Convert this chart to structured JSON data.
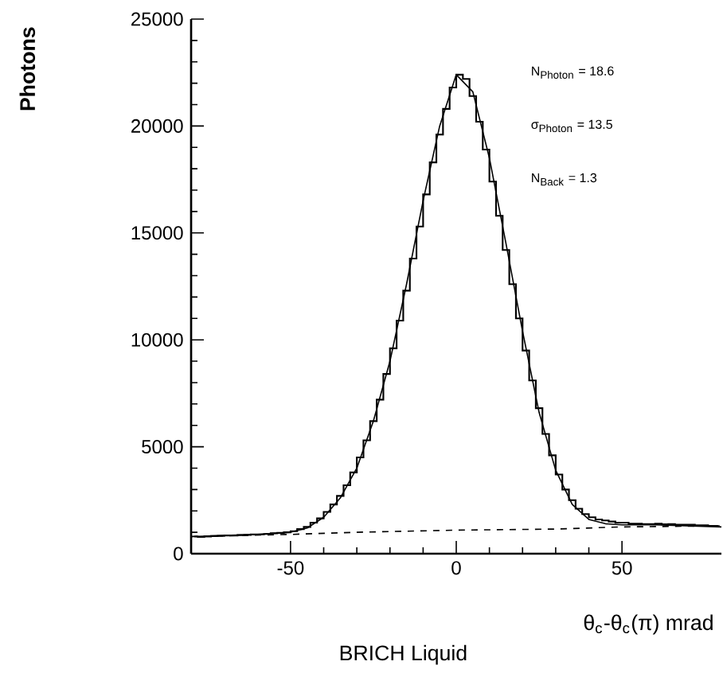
{
  "chart_data": {
    "type": "line",
    "xlabel": "θ$_{c}$-θ$_{c}$(π) mrad",
    "ylabel": "Photons",
    "annotations": [
      "N$_{Photon}$ = 18.6",
      "σ$_{Photon}$ = 13.5",
      "N$_{Back}$ = 1.3",
      "BRICH Liquid"
    ],
    "xlim": [
      -80,
      80
    ],
    "ylim": [
      0,
      25000
    ],
    "xticks": [
      -50,
      0,
      50
    ],
    "yticks": [
      0,
      5000,
      10000,
      15000,
      20000,
      25000
    ],
    "grid": false,
    "series": [
      {
        "type": "step",
        "color": "#000000",
        "x": [
          -79,
          -77,
          -75,
          -73,
          -71,
          -69,
          -67,
          -65,
          -63,
          -61,
          -59,
          -57,
          -55,
          -53,
          -51,
          -49,
          -47,
          -45,
          -43,
          -41,
          -39,
          -37,
          -35,
          -33,
          -31,
          -29,
          -27,
          -25,
          -23,
          -21,
          -19,
          -17,
          -15,
          -13,
          -11,
          -9,
          -7,
          -5,
          -3,
          -1,
          1,
          3,
          5,
          7,
          9,
          11,
          13,
          15,
          17,
          19,
          21,
          23,
          25,
          27,
          29,
          31,
          33,
          35,
          37,
          39,
          41,
          43,
          45,
          47,
          49,
          51,
          53,
          55,
          57,
          59,
          61,
          63,
          65,
          67,
          69,
          71,
          73,
          75,
          77,
          79
        ],
        "values": [
          800,
          780,
          800,
          820,
          830,
          850,
          850,
          870,
          880,
          900,
          900,
          920,
          950,
          970,
          1000,
          1050,
          1150,
          1250,
          1450,
          1650,
          1950,
          2300,
          2700,
          3200,
          3800,
          4500,
          5300,
          6200,
          7200,
          8400,
          9600,
          10900,
          12300,
          13800,
          15300,
          16800,
          18300,
          19600,
          20800,
          21800,
          22400,
          22200,
          21400,
          20200,
          18900,
          17400,
          15800,
          14200,
          12600,
          11000,
          9500,
          8100,
          6800,
          5600,
          4600,
          3700,
          3000,
          2500,
          2100,
          1850,
          1700,
          1600,
          1550,
          1500,
          1450,
          1450,
          1400,
          1400,
          1380,
          1380,
          1400,
          1370,
          1380,
          1350,
          1350,
          1350,
          1330,
          1330,
          1300,
          1300
        ]
      },
      {
        "color": "#000000",
        "line_style": "solid",
        "x": [
          -80,
          -70,
          -60,
          -50,
          -45,
          -40,
          -35,
          -30,
          -25,
          -20,
          -15,
          -10,
          -5,
          0,
          5,
          10,
          15,
          20,
          25,
          30,
          35,
          40,
          45,
          50,
          60,
          70,
          80
        ],
        "values": [
          800,
          850,
          900,
          1000,
          1200,
          1700,
          2600,
          4000,
          6200,
          9000,
          12600,
          16500,
          20000,
          22400,
          21600,
          18500,
          14500,
          10400,
          6600,
          3900,
          2300,
          1600,
          1400,
          1350,
          1350,
          1300,
          1250
        ]
      },
      {
        "color": "#000000",
        "line_style": "dashed",
        "x": [
          -80,
          -50,
          -30,
          0,
          30,
          50,
          80
        ],
        "values": [
          800,
          900,
          1000,
          1100,
          1150,
          1250,
          1300
        ]
      }
    ]
  }
}
